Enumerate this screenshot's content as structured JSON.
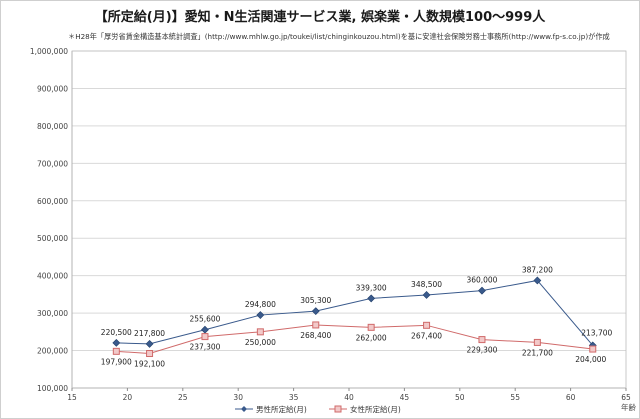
{
  "title": "【所定給(月)】愛知・N生活関連サービス業, 娯楽業・人数規模100～999人",
  "subtitle": "＊H28年「厚労省賃金構造基本統計調査」(http://www.mhlw.go.jp/toukei/list/chinginkouzou.html)を基に安達社会保険労務士事務所(http://www.fp-s.co.jp)が作成",
  "colors": {
    "male": "#3a5a8c",
    "female": "#d06a6a",
    "female_fill": "#f2c9c9",
    "grid": "#d9d9d9"
  },
  "chart_data": {
    "type": "line",
    "xlabel": "年齢",
    "ylabel": "",
    "xlim": [
      15,
      65
    ],
    "ylim": [
      100000,
      1000000
    ],
    "x_ticks": [
      15,
      20,
      25,
      30,
      35,
      40,
      45,
      50,
      55,
      60,
      65
    ],
    "y_ticks": [
      100000,
      200000,
      300000,
      400000,
      500000,
      600000,
      700000,
      800000,
      900000,
      1000000
    ],
    "y_tick_labels": [
      "100,000",
      "200,000",
      "300,000",
      "400,000",
      "500,000",
      "600,000",
      "700,000",
      "800,000",
      "900,000",
      "1,000,000"
    ],
    "grid": "horizontal",
    "legend_position": "bottom",
    "series": [
      {
        "name": "男性所定給(月)",
        "marker": "diamond",
        "x": [
          19,
          22,
          27,
          32,
          37,
          42,
          47,
          52,
          57,
          62
        ],
        "values": [
          220500,
          217800,
          255600,
          294800,
          305300,
          339300,
          348500,
          360000,
          387200,
          213700
        ],
        "labels": [
          "220,500",
          "217,800",
          "255,600",
          "294,800",
          "305,300",
          "339,300",
          "348,500",
          "360,000",
          "387,200",
          "213,700"
        ]
      },
      {
        "name": "女性所定給(月)",
        "marker": "square",
        "x": [
          19,
          22,
          27,
          32,
          37,
          42,
          47,
          52,
          57,
          62
        ],
        "values": [
          197900,
          192100,
          237300,
          250000,
          268400,
          262000,
          267400,
          229300,
          221700,
          204000
        ],
        "labels": [
          "197,900",
          "192,100",
          "237,300",
          "250,000",
          "268,400",
          "262,000",
          "267,400",
          "229,300",
          "221,700",
          "204,000"
        ]
      }
    ]
  }
}
